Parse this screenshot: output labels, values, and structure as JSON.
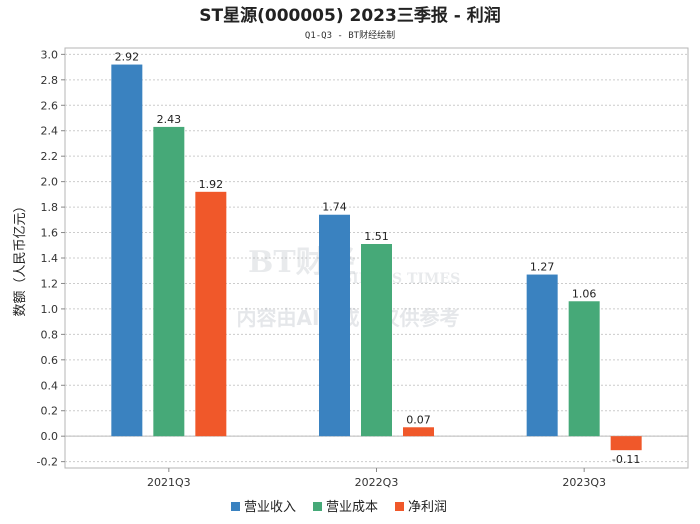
{
  "chart_data": {
    "type": "bar",
    "title": "ST星源(000005) 2023三季报 - 利润",
    "subtitle": "Q1-Q3 - BT财经绘制",
    "xlabel": "",
    "ylabel": "数额（人民币亿元）",
    "categories": [
      "2021Q3",
      "2022Q3",
      "2023Q3"
    ],
    "series": [
      {
        "name": "营业收入",
        "color": "#3a82c0",
        "values": [
          2.92,
          1.74,
          1.27
        ]
      },
      {
        "name": "营业成本",
        "color": "#46a978",
        "values": [
          2.43,
          1.51,
          1.06
        ]
      },
      {
        "name": "净利润",
        "color": "#f0582a",
        "values": [
          1.92,
          0.07,
          -0.11
        ]
      }
    ],
    "data_labels": [
      [
        "2.92",
        "2.43",
        "1.92"
      ],
      [
        "1.74",
        "1.51",
        "0.07"
      ],
      [
        "1.27",
        "1.06",
        "-0.11"
      ]
    ],
    "ylim": [
      -0.25,
      3.05
    ],
    "yticks": [
      "3.0",
      "2.8",
      "2.6",
      "2.4",
      "2.2",
      "2.0",
      "1.8",
      "1.6",
      "1.4",
      "1.2",
      "1.0",
      "0.8",
      "0.6",
      "0.4",
      "0.2",
      "0.0",
      "-0.2"
    ],
    "grid": true,
    "legend": "bottom-center"
  },
  "watermark": {
    "brand": "BT财经",
    "brand_en": "BUSINESS TIMES",
    "notice": "内容由AI生成，仅供参考"
  }
}
